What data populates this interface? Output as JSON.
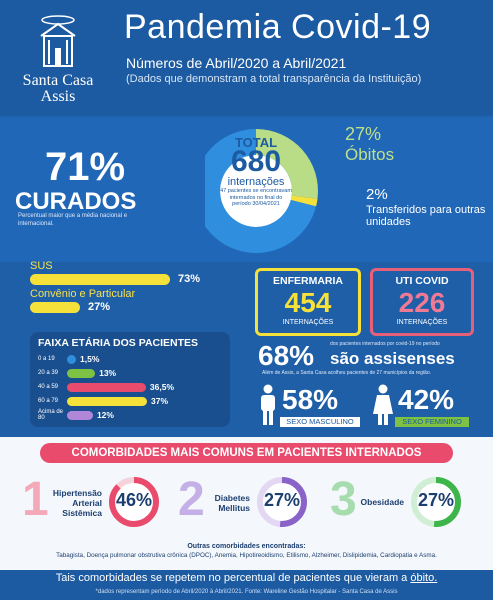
{
  "logo": {
    "line1": "Santa Casa",
    "line2": "Assis"
  },
  "header": {
    "title": "Pandemia Covid-19",
    "period": "Números de Abril/2020 a Abril/2021",
    "note": "(Dados que demonstram a total transparência da Instituição)"
  },
  "donut": {
    "total_label": "TOTAL",
    "total_value": "680",
    "total_unit": "internações",
    "note": "47 pacientes se encontravam internados no final do período 30/04/2021",
    "curados_pct": "71%",
    "curados_label": "CURADOS",
    "curados_note": "Percentual maior que a média nacional e internacional.",
    "obitos_pct": "27%",
    "obitos_label": "Óbitos",
    "transf_pct": "2%",
    "transf_label": "Transferidos para outras unidades",
    "shares": [
      71,
      27,
      2
    ],
    "colors": {
      "curados": "#2f8fde",
      "obitos": "#b9dc86",
      "transf": "#f5e13a"
    }
  },
  "sus": {
    "sus_label": "SUS",
    "sus_value": "73%",
    "sus_fraction": 0.73,
    "conv_label": "Convênio e Particular",
    "conv_value": "27%",
    "conv_fraction": 0.27
  },
  "faixa": {
    "title": "FAIXA ETÁRIA DOS PACIENTES",
    "rows": [
      {
        "age": "0 a 19",
        "value": "1,5%",
        "fraction": 0.015,
        "color": "#2f8fde"
      },
      {
        "age": "20 a 39",
        "value": "13%",
        "fraction": 0.13,
        "color": "#7dc242"
      },
      {
        "age": "40 a 59",
        "value": "36,5%",
        "value_fraction": 0.365,
        "fraction": 0.365,
        "color": "#e94b6d"
      },
      {
        "age": "60 a 79",
        "value": "37%",
        "fraction": 0.37,
        "color": "#f5e13a"
      },
      {
        "age": "Acima de 80",
        "value": "12%",
        "fraction": 0.12,
        "color": "#b187d9"
      }
    ]
  },
  "wards": {
    "enf_title": "ENFERMARIA",
    "enf_value": "454",
    "enf_sub": "INTERNAÇÕES",
    "uti_title": "UTI COVID",
    "uti_value": "226",
    "uti_sub": "INTERNAÇÕES"
  },
  "assis": {
    "pct": "68%",
    "note1": "dos pacientes internados por covid-19 no período",
    "label": "são assisenses",
    "note2": "Além de Assis, a Santa Casa acolheu pacientes de 27 municípios da região."
  },
  "sexo": {
    "masc_pct": "58%",
    "masc_label": "SEXO MASCULINO",
    "fem_pct": "42%",
    "fem_label": "SEXO FEMININO"
  },
  "comorbidades": {
    "title": "COMORBIDADES MAIS COMUNS EM PACIENTES INTERNADOS",
    "items": [
      {
        "n": "1",
        "label": "Hipertensão Arterial Sistêmica",
        "value": "46%",
        "fraction": 0.46,
        "color": "#e94b6d",
        "ncolor": "#f3a9b8"
      },
      {
        "n": "2",
        "label": "Diabetes Mellitus",
        "value": "27%",
        "fraction": 0.27,
        "color": "#8a63c9",
        "ncolor": "#c4b0e6"
      },
      {
        "n": "3",
        "label": "Obesidade",
        "value": "27%",
        "fraction": 0.27,
        "color": "#3db54a",
        "ncolor": "#a6dcae"
      }
    ],
    "outras_title": "Outras comorbidades encontradas:",
    "outras_list": "Tabagista, Doença pulmonar obstrutiva crônica (DPOC), Anemia, Hipotireoidismo, Etilismo, Alzheimer, Dislipidemia, Cardiopatia e Asma."
  },
  "footer": {
    "main_pre": "Tais comorbidades se repetem no percentual de pacientes que vieram a ",
    "main_link": "óbito.",
    "note": "*dados representam período de Abril/2020 à Abril/2021. Fonte: Wareline Gestão Hospitalar - Santa Casa de Assis"
  }
}
